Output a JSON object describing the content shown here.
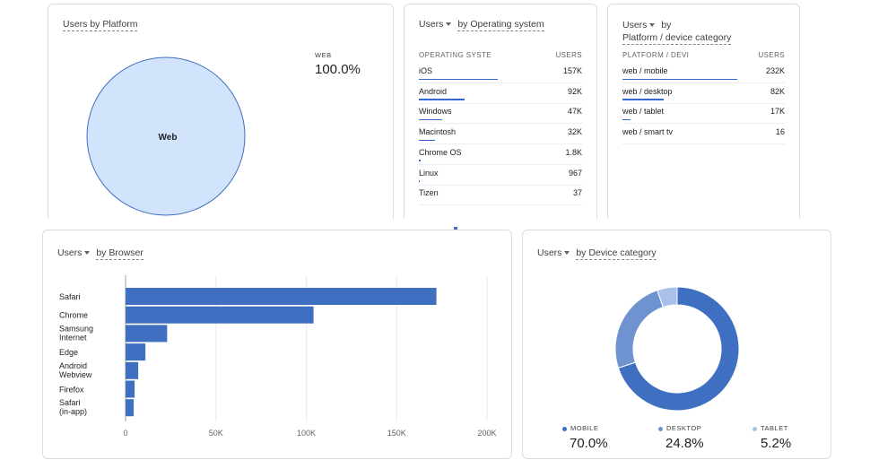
{
  "platform_card": {
    "title": "Users by Platform",
    "slice_label": "Web",
    "legend_label": "WEB",
    "legend_value": "100.0%",
    "color": "#d2e3fc"
  },
  "os_card": {
    "title_metric": "Users",
    "title_dim": "by Operating system",
    "col1": "OPERATING SYSTE",
    "col2": "USERS",
    "rows": [
      {
        "label": "iOS",
        "value": "157K",
        "share": 0.55
      },
      {
        "label": "Android",
        "value": "92K",
        "share": 0.32
      },
      {
        "label": "Windows",
        "value": "47K",
        "share": 0.16
      },
      {
        "label": "Macintosh",
        "value": "32K",
        "share": 0.11
      },
      {
        "label": "Chrome OS",
        "value": "1.8K",
        "share": 0.01
      },
      {
        "label": "Linux",
        "value": "967",
        "share": 0.005
      },
      {
        "label": "Tizen",
        "value": "37",
        "share": 0.0
      }
    ]
  },
  "device_table_card": {
    "title_metric": "Users",
    "title_dim_1": "by",
    "title_dim_2": "Platform / device category",
    "col1": "PLATFORM / DEVI",
    "col2": "USERS",
    "rows": [
      {
        "label": "web / mobile",
        "value": "232K",
        "share": 0.7
      },
      {
        "label": "web / desktop",
        "value": "82K",
        "share": 0.25
      },
      {
        "label": "web / tablet",
        "value": "17K",
        "share": 0.05
      },
      {
        "label": "web / smart tv",
        "value": "16",
        "share": 0.0
      }
    ]
  },
  "browser_card": {
    "title_metric": "Users",
    "title_dim": "by Browser"
  },
  "device_card": {
    "title_metric": "Users",
    "title_dim": "by Device category",
    "legend": [
      {
        "label": "MOBILE",
        "value": "70.0%",
        "color": "#3f6fc0"
      },
      {
        "label": "DESKTOP",
        "value": "24.8%",
        "color": "#6e93d0"
      },
      {
        "label": "TABLET",
        "value": "5.2%",
        "color": "#a9c1ea"
      }
    ]
  },
  "chart_data": [
    {
      "type": "bar",
      "orientation": "horizontal",
      "title": "Users by Browser",
      "categories": [
        "Safari",
        "Chrome",
        "Samsung Internet",
        "Edge",
        "Android Webview",
        "Firefox",
        "Safari (in-app)"
      ],
      "values": [
        172000,
        104000,
        23000,
        11000,
        7000,
        5000,
        4500
      ],
      "xlim": [
        0,
        200000
      ],
      "ticks": [
        0,
        50000,
        100000,
        150000,
        200000
      ],
      "tick_labels": [
        "0",
        "50K",
        "100K",
        "150K",
        "200K"
      ],
      "color": "#3f6fc0"
    },
    {
      "type": "pie",
      "donut": true,
      "title": "Users by Device category",
      "categories": [
        "MOBILE",
        "DESKTOP",
        "TABLET"
      ],
      "values": [
        70.0,
        24.8,
        5.2
      ],
      "colors": [
        "#3f6fc0",
        "#6e93d0",
        "#a9c1ea"
      ]
    }
  ]
}
